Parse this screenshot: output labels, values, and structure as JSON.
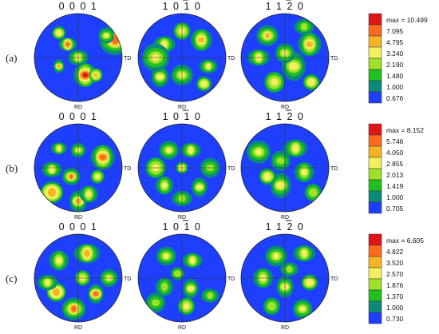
{
  "plane_titles": [
    "0 0 0 1",
    "1 0 1 0",
    "1 1 2 0"
  ],
  "axis_labels": {
    "td": "TD",
    "rd": "RD"
  },
  "rows": [
    {
      "label": "(a)",
      "legend": [
        "max = 10.499",
        "7.095",
        "4.795",
        "3.240",
        "2.190",
        "1.480",
        "1.000",
        "0.676"
      ],
      "blobs": [
        [
          [
            0.92,
            0.3,
            0.32,
            0.9
          ],
          [
            0.38,
            0.35,
            0.18,
            0.8
          ],
          [
            0.58,
            0.7,
            0.26,
            1.0
          ],
          [
            0.28,
            0.6,
            0.14,
            0.7
          ],
          [
            0.28,
            0.22,
            0.18,
            0.6
          ],
          [
            0.7,
            0.7,
            0.16,
            0.7
          ],
          [
            0.82,
            0.25,
            0.16,
            0.55
          ],
          [
            0.5,
            0.5,
            0.2,
            0.5
          ]
        ],
        [
          [
            0.5,
            0.7,
            0.22,
            0.6
          ],
          [
            0.3,
            0.35,
            0.22,
            0.5
          ],
          [
            0.72,
            0.3,
            0.24,
            0.7
          ],
          [
            0.25,
            0.72,
            0.22,
            0.5
          ],
          [
            0.75,
            0.8,
            0.2,
            0.6
          ],
          [
            0.5,
            0.2,
            0.2,
            0.5
          ],
          [
            0.2,
            0.5,
            0.28,
            0.5
          ],
          [
            0.8,
            0.6,
            0.18,
            0.5
          ]
        ],
        [
          [
            0.3,
            0.25,
            0.22,
            0.7
          ],
          [
            0.2,
            0.5,
            0.22,
            0.6
          ],
          [
            0.78,
            0.35,
            0.26,
            0.65
          ],
          [
            0.6,
            0.6,
            0.3,
            0.6
          ],
          [
            0.8,
            0.78,
            0.22,
            0.55
          ],
          [
            0.38,
            0.78,
            0.24,
            0.5
          ],
          [
            0.5,
            0.45,
            0.2,
            0.5
          ],
          [
            0.72,
            0.15,
            0.2,
            0.4
          ]
        ]
      ]
    },
    {
      "label": "(b)",
      "legend": [
        "max = 8.152",
        "5.746",
        "4.050",
        "2.855",
        "2.013",
        "1.419",
        "1.000",
        "0.705"
      ],
      "blobs": [
        [
          [
            0.42,
            0.6,
            0.18,
            0.85
          ],
          [
            0.28,
            0.28,
            0.16,
            0.6
          ],
          [
            0.78,
            0.38,
            0.27,
            0.9
          ],
          [
            0.5,
            0.88,
            0.22,
            0.75
          ],
          [
            0.2,
            0.78,
            0.3,
            0.7
          ],
          [
            0.72,
            0.6,
            0.16,
            0.6
          ],
          [
            0.5,
            0.3,
            0.15,
            0.6
          ],
          [
            0.2,
            0.52,
            0.2,
            0.5
          ],
          [
            0.62,
            0.8,
            0.2,
            0.5
          ]
        ],
        [
          [
            0.35,
            0.3,
            0.2,
            0.5
          ],
          [
            0.6,
            0.3,
            0.2,
            0.55
          ],
          [
            0.3,
            0.7,
            0.2,
            0.5
          ],
          [
            0.7,
            0.72,
            0.2,
            0.55
          ],
          [
            0.5,
            0.5,
            0.16,
            0.5
          ],
          [
            0.2,
            0.5,
            0.24,
            0.5
          ],
          [
            0.82,
            0.5,
            0.2,
            0.45
          ],
          [
            0.5,
            0.85,
            0.2,
            0.4
          ]
        ],
        [
          [
            0.2,
            0.32,
            0.24,
            0.6
          ],
          [
            0.62,
            0.28,
            0.24,
            0.55
          ],
          [
            0.72,
            0.55,
            0.22,
            0.6
          ],
          [
            0.45,
            0.7,
            0.26,
            0.5
          ],
          [
            0.3,
            0.6,
            0.22,
            0.5
          ],
          [
            0.82,
            0.78,
            0.2,
            0.45
          ],
          [
            0.45,
            0.42,
            0.2,
            0.45
          ]
        ]
      ]
    },
    {
      "label": "(c)",
      "legend": [
        "max = 6.605",
        "4.822",
        "3.520",
        "2.570",
        "1.876",
        "1.370",
        "1.000",
        "0.730"
      ],
      "blobs": [
        [
          [
            0.45,
            0.85,
            0.24,
            0.85
          ],
          [
            0.6,
            0.22,
            0.26,
            0.75
          ],
          [
            0.28,
            0.3,
            0.22,
            0.55
          ],
          [
            0.7,
            0.68,
            0.2,
            0.8
          ],
          [
            0.25,
            0.66,
            0.26,
            0.7
          ],
          [
            0.55,
            0.5,
            0.18,
            0.5
          ],
          [
            0.85,
            0.5,
            0.18,
            0.55
          ],
          [
            0.15,
            0.55,
            0.2,
            0.5
          ]
        ],
        [
          [
            0.32,
            0.25,
            0.2,
            0.5
          ],
          [
            0.62,
            0.3,
            0.2,
            0.5
          ],
          [
            0.3,
            0.6,
            0.2,
            0.45
          ],
          [
            0.6,
            0.62,
            0.2,
            0.55
          ],
          [
            0.45,
            0.45,
            0.18,
            0.45
          ],
          [
            0.55,
            0.82,
            0.2,
            0.5
          ],
          [
            0.2,
            0.78,
            0.2,
            0.45
          ],
          [
            0.82,
            0.7,
            0.18,
            0.45
          ]
        ],
        [
          [
            0.4,
            0.25,
            0.22,
            0.6
          ],
          [
            0.72,
            0.22,
            0.22,
            0.5
          ],
          [
            0.25,
            0.5,
            0.22,
            0.55
          ],
          [
            0.5,
            0.6,
            0.22,
            0.55
          ],
          [
            0.78,
            0.55,
            0.22,
            0.5
          ],
          [
            0.35,
            0.82,
            0.2,
            0.45
          ],
          [
            0.7,
            0.85,
            0.2,
            0.5
          ],
          [
            0.55,
            0.4,
            0.18,
            0.45
          ]
        ]
      ]
    }
  ],
  "colors": {
    "levels": [
      "#1f3fff",
      "#0b8a7a",
      "#20c020",
      "#9fe02a",
      "#f2f060",
      "#f6b322",
      "#ff6a1f",
      "#e01616"
    ]
  }
}
